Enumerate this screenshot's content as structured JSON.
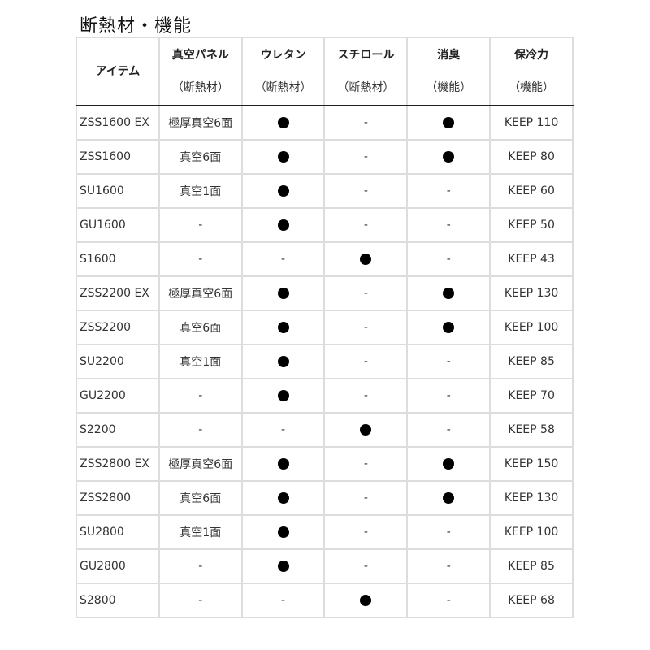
{
  "title": "断熱材・機能",
  "headers": [
    {
      "main": "アイテム",
      "sub": ""
    },
    {
      "main": "真空パネル",
      "sub": "（断熱材）"
    },
    {
      "main": "ウレタン",
      "sub": "（断熱材）"
    },
    {
      "main": "スチロール",
      "sub": "（断熱材）"
    },
    {
      "main": "消臭",
      "sub": "（機能）"
    },
    {
      "main": "保冷力",
      "sub": "（機能）"
    }
  ],
  "rows": [
    [
      "ZSS1600 EX",
      "極厚真空6面",
      "●",
      "-",
      "●",
      "KEEP 110"
    ],
    [
      "ZSS1600",
      "真空6面",
      "●",
      "-",
      "●",
      "KEEP 80"
    ],
    [
      "SU1600",
      "真空1面",
      "●",
      "-",
      "-",
      "KEEP 60"
    ],
    [
      "GU1600",
      "-",
      "●",
      "-",
      "-",
      "KEEP 50"
    ],
    [
      "S1600",
      "-",
      "-",
      "●",
      "-",
      "KEEP 43"
    ],
    [
      "ZSS2200 EX",
      "極厚真空6面",
      "●",
      "-",
      "●",
      "KEEP 130"
    ],
    [
      "ZSS2200",
      "真空6面",
      "●",
      "-",
      "●",
      "KEEP 100"
    ],
    [
      "SU2200",
      "真空1面",
      "●",
      "-",
      "-",
      "KEEP 85"
    ],
    [
      "GU2200",
      "-",
      "●",
      "-",
      "-",
      "KEEP 70"
    ],
    [
      "S2200",
      "-",
      "-",
      "●",
      "-",
      "KEEP 58"
    ],
    [
      "ZSS2800 EX",
      "極厚真空6面",
      "●",
      "-",
      "●",
      "KEEP 150"
    ],
    [
      "ZSS2800",
      "真空6面",
      "●",
      "-",
      "●",
      "KEEP 130"
    ],
    [
      "SU2800",
      "真空1面",
      "●",
      "-",
      "-",
      "KEEP 100"
    ],
    [
      "GU2800",
      "-",
      "●",
      "-",
      "-",
      "KEEP 85"
    ],
    [
      "S2800",
      "-",
      "-",
      "●",
      "-",
      "KEEP 68"
    ]
  ]
}
